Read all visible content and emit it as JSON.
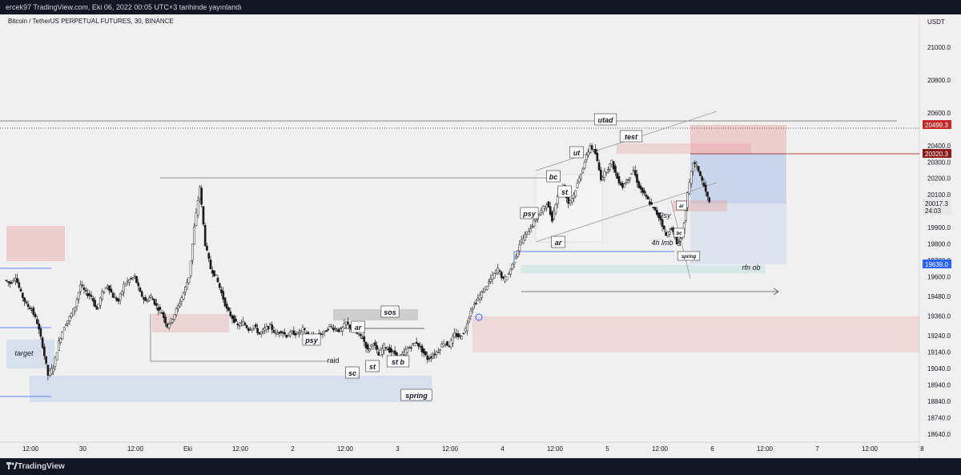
{
  "header": {
    "text": "ercek97 TradingView.com, Eki 06, 2022 00:05 UTC+3 tarihinde yayınlandı"
  },
  "footer": {
    "brand": "TradingView"
  },
  "symbol": {
    "title": "Bitcoin / TetherUS PERPETUAL FUTURES, 30, BINANCE",
    "currency": "USDT"
  },
  "colors": {
    "up": "#3a3a3a",
    "down": "#1a1a1a",
    "red_zone": "#e8a0a0",
    "blue_zone": "#a8c0e8",
    "current_price": "#131722",
    "red_label": "#c62828",
    "dark_red_label": "#8b1a1a",
    "blue_label": "#2962ff"
  },
  "chart_data": {
    "type": "candlestick",
    "y_ticks": [
      18640.0,
      18740.0,
      18840.0,
      18940.0,
      19040.0,
      19140.0,
      19240.0,
      19360.0,
      19480.0,
      19600.0,
      19700.0,
      19800.0,
      19900.0,
      20100.0,
      20200.0,
      20300.0,
      20400.0,
      20600.0,
      20800.0,
      21000.0
    ],
    "y_tick_labels": [
      "18640.0",
      "18740.0",
      "18840.0",
      "18940.0",
      "19040.0",
      "19140.0",
      "19240.0",
      "19360.0",
      "19480.0",
      "19600.0",
      "19700.0",
      "19800.0",
      "19900.0",
      "20100.0",
      "20200.0",
      "20300.0",
      "20400.0",
      "20600.0",
      "20800.0",
      "21000.0"
    ],
    "x_tick_labels": [
      "12:00",
      "30",
      "12:00",
      "Eki",
      "12:00",
      "2",
      "12:00",
      "3",
      "12:00",
      "4",
      "12:00",
      "5",
      "12:00",
      "6",
      "12:00",
      "7",
      "12:00",
      "8"
    ],
    "price_labels": [
      {
        "value": "20499.3",
        "kind": "red"
      },
      {
        "value": "20320.3",
        "kind": "darkred"
      },
      {
        "value": "20017.3",
        "kind": "current"
      },
      {
        "value": "24:03",
        "kind": "countdown"
      },
      {
        "value": "19639.0",
        "kind": "blue"
      }
    ],
    "annotations": [
      "target",
      "raid",
      "psy",
      "ar",
      "sc",
      "st",
      "st b",
      "sos",
      "spring",
      "psy",
      "ar",
      "bc",
      "st",
      "ut",
      "utad",
      "test",
      "Psy",
      "ar",
      "bc",
      "4h lmb ✓",
      "spring",
      "rfn ob"
    ],
    "ohlc_path": [
      19580,
      19560,
      19600,
      19500,
      19430,
      19400,
      19320,
      19180,
      19000,
      19050,
      19200,
      19300,
      19350,
      19420,
      19550,
      19500,
      19480,
      19400,
      19500,
      19550,
      19480,
      19450,
      19550,
      19580,
      19600,
      19500,
      19450,
      19480,
      19420,
      19380,
      19300,
      19350,
      19420,
      19500,
      19600,
      19900,
      20150,
      19800,
      19650,
      19600,
      19500,
      19400,
      19350,
      19300,
      19320,
      19280,
      19300,
      19250,
      19280,
      19300,
      19250,
      19270,
      19240,
      19260,
      19250,
      19280,
      19240,
      19230,
      19250,
      19260,
      19300,
      19280,
      19270,
      19320,
      19280,
      19250,
      19230,
      19150,
      19200,
      19120,
      19180,
      19150,
      19130,
      19100,
      19150,
      19180,
      19200,
      19150,
      19100,
      19120,
      19150,
      19200,
      19180,
      19250,
      19230,
      19280,
      19400,
      19450,
      19500,
      19550,
      19600,
      19650,
      19580,
      19620,
      19700,
      19800,
      19850,
      19900,
      19950,
      20000,
      20050,
      19950,
      20100,
      20150,
      20050,
      20100,
      20200,
      20300,
      20400,
      20350,
      20200,
      20250,
      20300,
      20200,
      20150,
      20200,
      20250,
      20150,
      20100,
      20050,
      20000,
      19950,
      19850,
      19900,
      19800,
      19850,
      20100,
      20300,
      20250,
      20150,
      20050
    ]
  }
}
